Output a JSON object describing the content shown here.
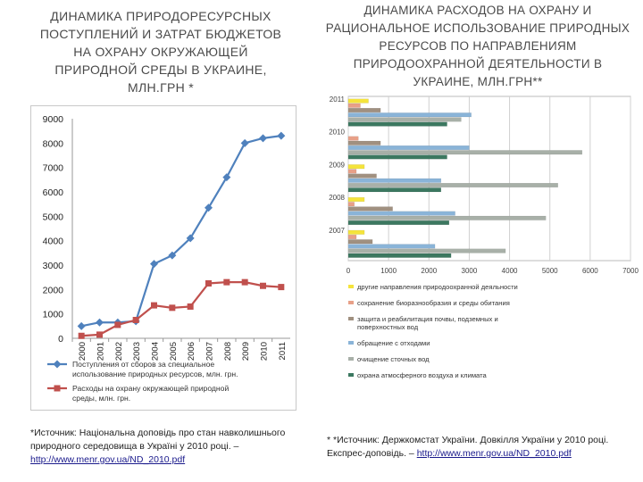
{
  "left": {
    "title": "ДИНАМИКА  ПРИРОДОРЕСУРСНЫХ\nПОСТУПЛЕНИЙ И ЗАТРАТ БЮДЖЕТОВ\nНА ОХРАНУ ОКРУЖАЮЩЕЙ\nПРИРОДНОЙ СРЕДЫ В УКРАИНЕ,\nмлн.грн  *",
    "source_text": "*Источник: Національна доповідь про стан навколишнього природного середовища в Україні у 2010 році. –",
    "source_link": "http://www.menr.gov.ua/ND_2010.pdf"
  },
  "right": {
    "title": "ДИНАМИКА РАСХОДОВ НА ОХРАНУ И РАЦИОНАЛЬНОЕ ИСПОЛЬЗОВАНИЕ ПРИРОДНЫХ РЕСУРСОВ ПО НАПРАВЛЕНИЯМ ПРИРОДООХРАННОЙ ДЕЯТЕЛЬНОСТИ В УКРАИНЕ, млн.грн**",
    "source_text": "* *Источник: Держкомстат України. Довкілля України у 2010 році. Експрес-доповідь. –",
    "source_link": "http://www.menr.gov.ua/ND_2010.pdf"
  },
  "chart_data": [
    {
      "type": "line",
      "x": [
        "2000",
        "2001",
        "2002",
        "2003",
        "2004",
        "2005",
        "2006",
        "2007",
        "2008",
        "2009",
        "2010",
        "2011"
      ],
      "ylim": [
        0,
        9000
      ],
      "yticks": [
        "0",
        "1000",
        "2000",
        "3000",
        "4000",
        "5000",
        "6000",
        "7000",
        "8000",
        "9000"
      ],
      "grid": false,
      "legend_position": "bottom",
      "series": [
        {
          "name": "Поступления от сборов за специальное использование природных ресурсов, млн. грн.",
          "color": "#4f81bd",
          "marker": "diamond",
          "values": [
            500,
            650,
            650,
            700,
            3050,
            3400,
            4100,
            5350,
            6600,
            8000,
            8200,
            8300
          ]
        },
        {
          "name": "Расходы на охрану окружающей природной среды, млн. грн.",
          "color": "#c0504d",
          "marker": "square",
          "values": [
            100,
            150,
            550,
            750,
            1350,
            1250,
            1300,
            2250,
            2300,
            2300,
            2150,
            2100
          ]
        }
      ]
    },
    {
      "type": "bar",
      "orientation": "horizontal",
      "categories": [
        "2011",
        "2010",
        "2009",
        "2008",
        "2007"
      ],
      "xlim": [
        0,
        7000
      ],
      "xticks": [
        "0",
        "1000",
        "2000",
        "3000",
        "4000",
        "5000",
        "6000",
        "7000"
      ],
      "grid": true,
      "legend_position": "bottom",
      "series": [
        {
          "name": "другие направления природоохранной деяльности",
          "color": "#f5e43c",
          "values": [
            500,
            0,
            400,
            400,
            400
          ]
        },
        {
          "name": "сохранение биоразнообразия и среды обитания",
          "color": "#e8a088",
          "values": [
            300,
            250,
            200,
            150,
            200
          ]
        },
        {
          "name": "защита и реабилитация почвы, подземных и поверхностных вод",
          "color": "#a09080",
          "values": [
            800,
            800,
            700,
            1100,
            600
          ]
        },
        {
          "name": "обращение с отходами",
          "color": "#8ab4d8",
          "values": [
            3050,
            3000,
            2300,
            2650,
            2150
          ]
        },
        {
          "name": "очищение сточных вод",
          "color": "#a8b0a8",
          "values": [
            2800,
            5800,
            5200,
            4900,
            3900
          ]
        },
        {
          "name": "охрана атмосферного воздуха и климата",
          "color": "#3c7860",
          "values": [
            2450,
            2450,
            2300,
            2500,
            2550
          ]
        }
      ]
    }
  ]
}
